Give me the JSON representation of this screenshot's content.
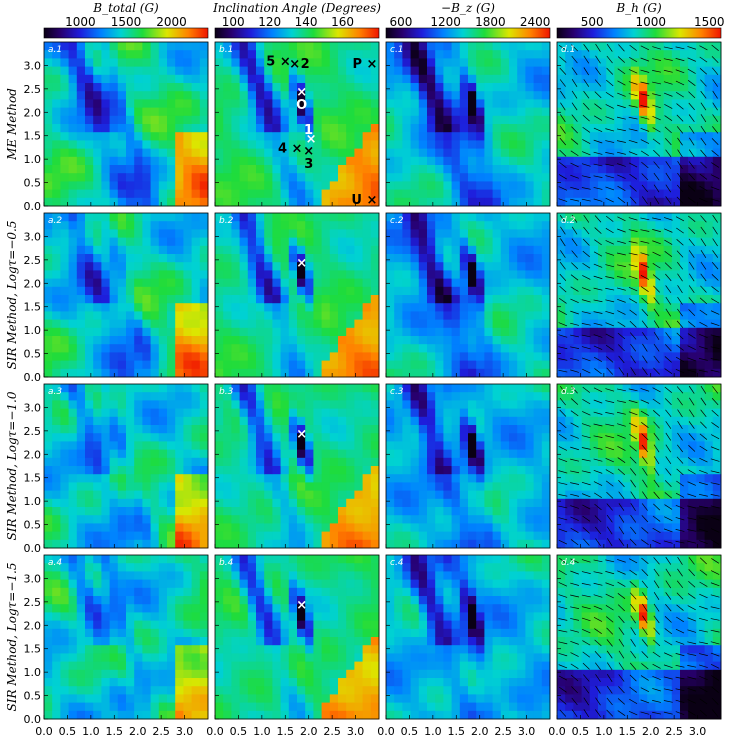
{
  "chart_data": {
    "type": "heatmap",
    "colorbars": [
      {
        "title": "B_total (G)",
        "ticks": [
          "1000",
          "1500",
          "2000"
        ],
        "range": [
          600,
          2400
        ]
      },
      {
        "title": "Inclination Angle (Degrees)",
        "ticks": [
          "100",
          "120",
          "140",
          "160"
        ],
        "range": [
          90,
          180
        ]
      },
      {
        "title": "−B_z (G)",
        "ticks": [
          "600",
          "1200",
          "1800",
          "2400"
        ],
        "range": [
          400,
          2600
        ]
      },
      {
        "title": "B_h (G)",
        "ticks": [
          "500",
          "1000",
          "1500"
        ],
        "range": [
          200,
          1600
        ]
      }
    ],
    "rows": [
      {
        "label": "ME Method"
      },
      {
        "label": "SIR Method, Logτ=−0.5"
      },
      {
        "label": "SIR Method, Logτ=−1.0"
      },
      {
        "label": "SIR Method, Logτ=−1.5"
      }
    ],
    "panel_labels": [
      [
        "a.1",
        "b.1",
        "c.1",
        "d.1"
      ],
      [
        "a.2",
        "b.2",
        "c.2",
        "d.2"
      ],
      [
        "a.3",
        "b.3",
        "c.3",
        "d.3"
      ],
      [
        "a.4",
        "b.4",
        "c.4",
        "d.4"
      ]
    ],
    "axis_ticks": [
      "0.0",
      "0.5",
      "1.0",
      "1.5",
      "2.0",
      "2.5",
      "3.0"
    ],
    "xlim": [
      0,
      3.5
    ],
    "ylim": [
      0,
      3.5
    ],
    "markers": [
      {
        "label": "5",
        "x": 1.5,
        "y": 3.1
      },
      {
        "label": "2",
        "x": 1.7,
        "y": 3.05
      },
      {
        "label": "O",
        "x": 1.85,
        "y": 2.45
      },
      {
        "label": "1",
        "x": 2.05,
        "y": 1.45
      },
      {
        "label": "4",
        "x": 1.75,
        "y": 1.25
      },
      {
        "label": "3",
        "x": 2.0,
        "y": 1.2
      },
      {
        "label": "P",
        "x": 3.35,
        "y": 3.05
      },
      {
        "label": "U",
        "x": 3.35,
        "y": 0.15
      }
    ],
    "marker_white_in_rows": [
      2,
      3,
      4
    ],
    "marker_white_x": 1.85,
    "marker_white_y": 2.45
  }
}
